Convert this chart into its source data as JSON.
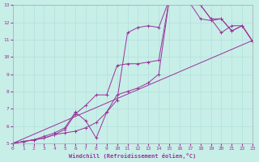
{
  "xlabel": "Windchill (Refroidissement éolien,°C)",
  "bg_color": "#c8eee8",
  "line_color": "#993399",
  "xlim": [
    0,
    23
  ],
  "ylim": [
    5,
    13
  ],
  "xticks": [
    0,
    1,
    2,
    3,
    4,
    5,
    6,
    7,
    8,
    9,
    10,
    11,
    12,
    13,
    14,
    15,
    16,
    17,
    18,
    19,
    20,
    21,
    22,
    23
  ],
  "yticks": [
    5,
    6,
    7,
    8,
    9,
    10,
    11,
    12,
    13
  ],
  "series": [
    {
      "x": [
        0,
        1,
        2,
        3,
        4,
        5,
        6,
        7,
        8,
        9,
        10,
        11,
        12,
        13,
        14,
        15,
        16,
        17,
        18,
        19,
        20,
        21,
        22,
        23
      ],
      "y": [
        5.0,
        5.1,
        5.2,
        5.3,
        5.5,
        5.6,
        5.7,
        5.9,
        6.2,
        6.8,
        7.5,
        11.4,
        11.7,
        11.8,
        11.7,
        13.3,
        13.3,
        13.1,
        13.0,
        12.2,
        11.4,
        11.8,
        11.8,
        10.9
      ],
      "marker": true
    },
    {
      "x": [
        0,
        1,
        2,
        3,
        4,
        5,
        6,
        7,
        8,
        9,
        10,
        11,
        12,
        13,
        14,
        15,
        16,
        17,
        18,
        19,
        20,
        21,
        22,
        23
      ],
      "y": [
        5.0,
        5.1,
        5.2,
        5.4,
        5.6,
        5.9,
        6.8,
        6.3,
        5.3,
        6.8,
        7.8,
        8.0,
        8.2,
        8.5,
        9.0,
        13.3,
        13.3,
        13.1,
        13.0,
        12.2,
        12.2,
        11.5,
        11.8,
        10.9
      ],
      "marker": true
    },
    {
      "x": [
        0,
        1,
        2,
        3,
        4,
        5,
        6,
        7,
        8,
        9,
        10,
        11,
        12,
        13,
        14,
        15,
        16,
        17,
        18,
        19,
        20,
        21,
        22,
        23
      ],
      "y": [
        5.0,
        5.1,
        5.2,
        5.3,
        5.5,
        5.8,
        6.7,
        7.2,
        7.8,
        7.8,
        9.5,
        9.6,
        9.6,
        9.7,
        9.8,
        13.3,
        13.3,
        13.1,
        12.2,
        12.1,
        12.2,
        11.5,
        11.8,
        10.9
      ],
      "marker": true
    },
    {
      "x": [
        0,
        23
      ],
      "y": [
        5.0,
        10.95
      ],
      "marker": false
    }
  ]
}
